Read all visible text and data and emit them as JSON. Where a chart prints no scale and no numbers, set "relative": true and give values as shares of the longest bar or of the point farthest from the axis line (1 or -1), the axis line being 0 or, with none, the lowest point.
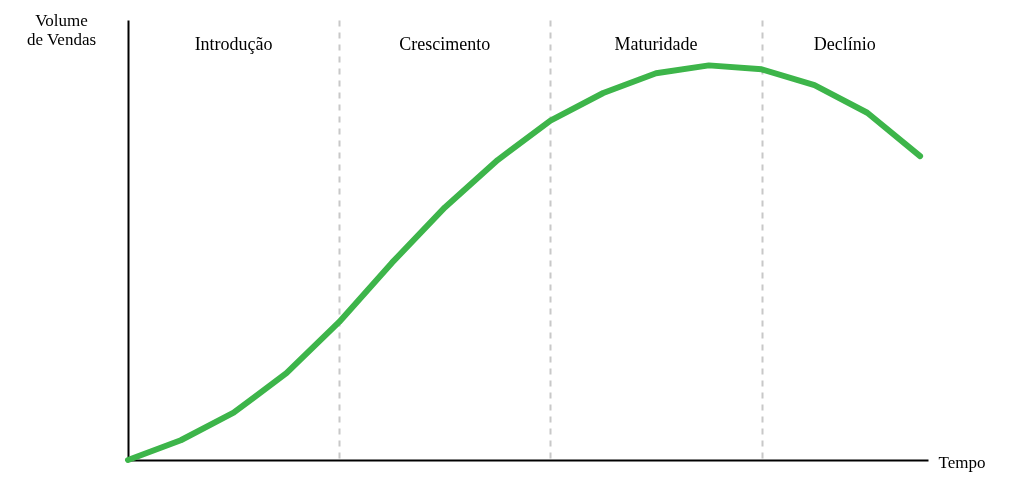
{
  "chart_data": {
    "type": "line",
    "relative": true,
    "ylabel": "Volume de Vendas",
    "xlabel": "Tempo",
    "categories": [
      null,
      null,
      null,
      null,
      null,
      null,
      null,
      null,
      null,
      null,
      null,
      null,
      null,
      null,
      null,
      null
    ],
    "series": [
      {
        "color": "#3db54a",
        "values": [
          0,
          0.05,
          0.12,
          0.22,
          0.35,
          0.5,
          0.64,
          0.76,
          0.86,
          0.93,
          0.98,
          1.0,
          0.99,
          0.95,
          0.88,
          0.77
        ]
      }
    ],
    "marker": "none",
    "line_style": "solid",
    "grid": "x",
    "annotations": [
      "Introdução",
      "Crescimento",
      "Maturidade",
      "Declínio"
    ]
  }
}
